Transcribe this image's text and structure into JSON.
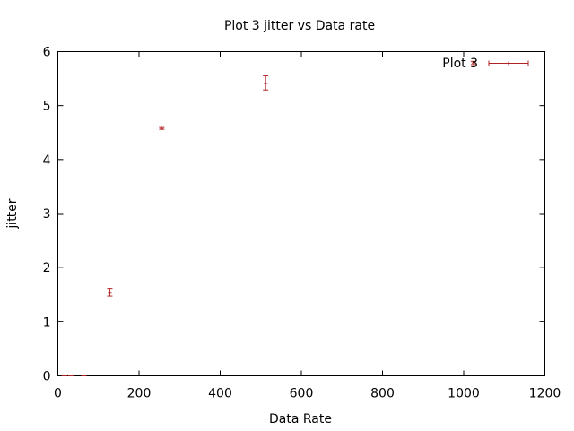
{
  "chart_data": {
    "type": "scatter",
    "title": "Plot 3 jitter vs Data rate",
    "xlabel": "Data Rate",
    "ylabel": "jitter",
    "xlim": [
      0,
      1200
    ],
    "ylim": [
      0,
      6
    ],
    "xticks": [
      "0",
      "200",
      "400",
      "600",
      "800",
      "1000",
      "1200"
    ],
    "yticks": [
      "0",
      "1",
      "2",
      "3",
      "4",
      "5",
      "6"
    ],
    "grid": false,
    "legend_position": "top-right",
    "series": [
      {
        "name": "Plot 3",
        "color": "#b22222",
        "style": "error-bars",
        "points": [
          {
            "x": 16,
            "y": 0.0,
            "ymin": 0.0,
            "ymax": 0.0
          },
          {
            "x": 32,
            "y": 0.0,
            "ymin": 0.0,
            "ymax": 0.0
          },
          {
            "x": 64,
            "y": 0.0,
            "ymin": 0.0,
            "ymax": 0.0
          },
          {
            "x": 128,
            "y": 1.54,
            "ymin": 1.47,
            "ymax": 1.61
          },
          {
            "x": 256,
            "y": 4.58,
            "ymin": 4.56,
            "ymax": 4.61
          },
          {
            "x": 512,
            "y": 5.41,
            "ymin": 5.29,
            "ymax": 5.55
          },
          {
            "x": 1024,
            "y": 5.79,
            "ymin": 5.76,
            "ymax": 5.82
          }
        ]
      }
    ]
  }
}
